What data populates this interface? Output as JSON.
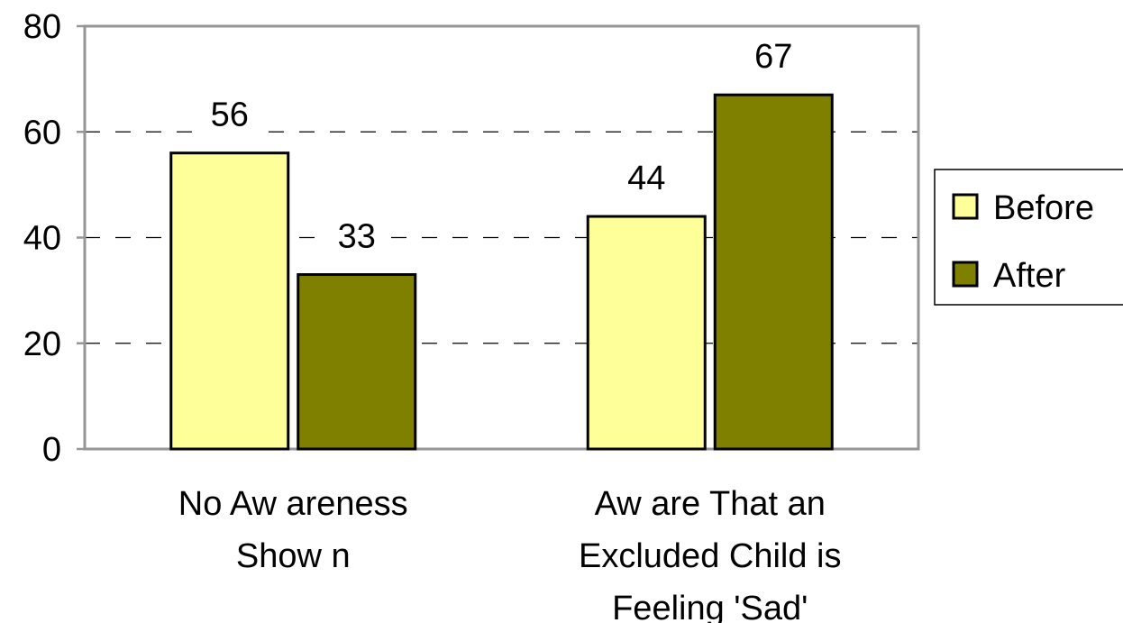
{
  "chart_data": {
    "type": "bar",
    "title": "",
    "xlabel": "",
    "ylabel": "",
    "categories": [
      [
        "No Aw areness",
        "Show n"
      ],
      [
        "Aw are That an",
        "Excluded Child is",
        "Feeling 'Sad'"
      ]
    ],
    "series": [
      {
        "name": "Before",
        "values": [
          56,
          44
        ],
        "color": "#FFFF99",
        "value_labels": [
          "56",
          "44"
        ]
      },
      {
        "name": "After",
        "values": [
          33,
          67
        ],
        "color": "#808000",
        "value_labels": [
          "33",
          "67"
        ]
      }
    ],
    "ylim": [
      0,
      80
    ],
    "yticks": [
      0,
      20,
      40,
      60,
      80
    ],
    "ytick_labels": [
      "0",
      "20",
      "40",
      "60",
      "80"
    ],
    "grid": "horizontal dashed",
    "legend_position": "right"
  }
}
